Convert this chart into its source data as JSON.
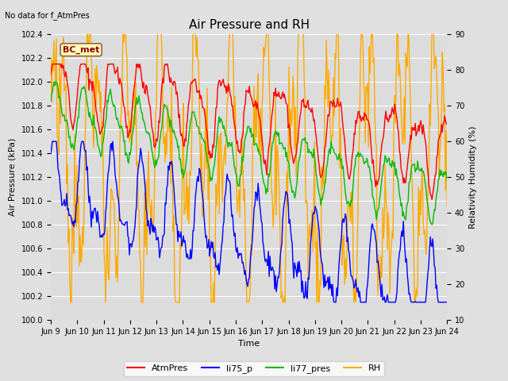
{
  "title": "Air Pressure and RH",
  "top_left_text": "No data for f_AtmPres",
  "box_label": "BC_met",
  "xlabel": "Time",
  "ylabel_left": "Air Pressure (kPa)",
  "ylabel_right": "Relativity Humidity (%)",
  "ylim_left": [
    100.0,
    102.4
  ],
  "ylim_right": [
    10,
    90
  ],
  "yticks_left": [
    100.0,
    100.2,
    100.4,
    100.6,
    100.8,
    101.0,
    101.2,
    101.4,
    101.6,
    101.8,
    102.0,
    102.2,
    102.4
  ],
  "yticks_right": [
    10,
    20,
    30,
    40,
    50,
    60,
    70,
    80,
    90
  ],
  "xtick_labels": [
    "Jun 9",
    "Jun 10",
    "Jun 11",
    "Jun 12",
    "Jun 13",
    "Jun 14",
    "Jun 15",
    "Jun 16",
    "Jun 17",
    "Jun 18",
    "Jun 19",
    "Jun 20",
    "Jun 21",
    "Jun 22",
    "Jun 23",
    "Jun 24"
  ],
  "colors": {
    "AtmPres": "#ff0000",
    "li75_p": "#0000ff",
    "li77_pres": "#00bb00",
    "RH": "#ffaa00"
  },
  "fig_bg": "#e0e0e0",
  "plot_bg": "#dcdcdc",
  "grid_color": "#ffffff",
  "linewidth": 1.0,
  "title_fontsize": 11,
  "label_fontsize": 8,
  "tick_fontsize": 7,
  "legend_fontsize": 8
}
